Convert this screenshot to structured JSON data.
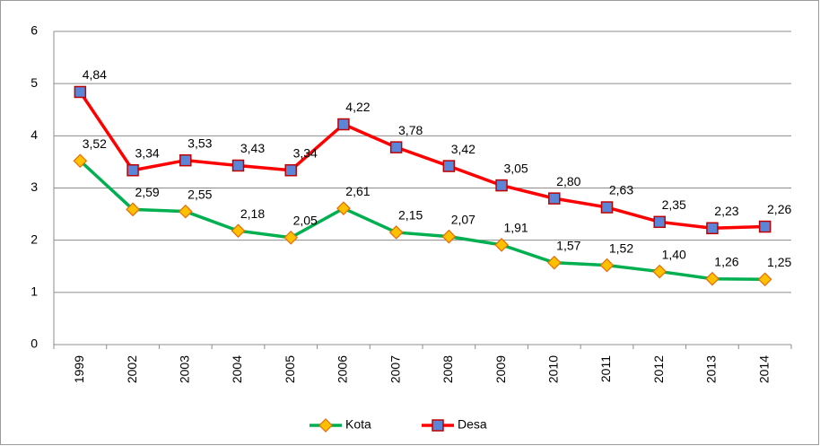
{
  "chart_data": {
    "type": "line",
    "categories": [
      "1999",
      "2002",
      "2003",
      "2004",
      "2005",
      "2006",
      "2007",
      "2008",
      "2009",
      "2010",
      "2011",
      "2012",
      "2013",
      "2014"
    ],
    "series": [
      {
        "name": "Kota",
        "color": "#00b050",
        "marker_color": "#ffc000",
        "marker": "diamond",
        "values": [
          3.52,
          2.59,
          2.55,
          2.18,
          2.05,
          2.61,
          2.15,
          2.07,
          1.91,
          1.57,
          1.52,
          1.4,
          1.26,
          1.25
        ],
        "value_labels": [
          "3,52",
          "2,59",
          "2,55",
          "2,18",
          "2,05",
          "2,61",
          "2,15",
          "2,07",
          "1,91",
          "1,57",
          "1,52",
          "1,40",
          "1,26",
          "1,25"
        ]
      },
      {
        "name": "Desa",
        "color": "#ff0000",
        "marker_color": "#5b86d8",
        "marker": "square",
        "values": [
          4.84,
          3.34,
          3.53,
          3.43,
          3.34,
          4.22,
          3.78,
          3.42,
          3.05,
          2.8,
          2.63,
          2.35,
          2.23,
          2.26
        ],
        "value_labels": [
          "4,84",
          "3,34",
          "3,53",
          "3,43",
          "3,34",
          "4,22",
          "3,78",
          "3,42",
          "3,05",
          "2,80",
          "2,63",
          "2,35",
          "2,23",
          "2,26"
        ]
      }
    ],
    "ylim": [
      0,
      6
    ],
    "yticks": [
      0,
      1,
      2,
      3,
      4,
      5,
      6
    ],
    "grid": true,
    "legend": "bottom"
  }
}
